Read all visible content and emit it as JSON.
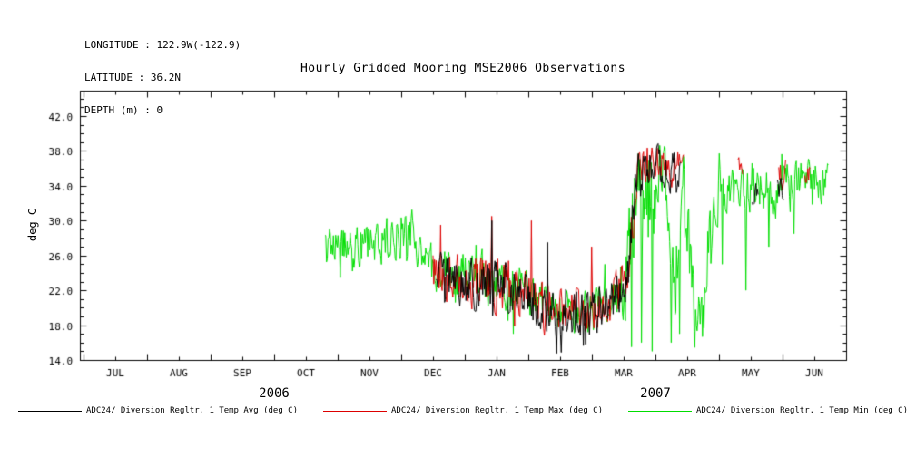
{
  "header": {
    "longitude": "LONGITUDE : 122.9W(-122.9)",
    "latitude": "LATITUDE : 36.2N",
    "depth": "DEPTH (m) : 0"
  },
  "chart_data": {
    "type": "line",
    "title": "Hourly Gridded Mooring MSE2006 Observations",
    "ylabel": "deg C",
    "y_axis": {
      "min": 14.0,
      "max": 42.0,
      "tick_step": 4.0,
      "tick_labels": [
        "14.0",
        "18.0",
        "22.0",
        "26.0",
        "30.0",
        "34.0",
        "38.0",
        "42.0"
      ]
    },
    "x_axis": {
      "months": [
        "JUL",
        "AUG",
        "SEP",
        "OCT",
        "NOV",
        "DEC",
        "JAN",
        "FEB",
        "MAR",
        "APR",
        "MAY",
        "JUN"
      ],
      "years": [
        {
          "label": "2006",
          "boundary_index": 3
        },
        {
          "label": "2007",
          "boundary_index": 9
        }
      ],
      "time_origin": "months since 2006-07-01",
      "data_range_months": [
        3.8,
        11.72
      ]
    },
    "grid": false,
    "legend_position": "bottom",
    "series": [
      {
        "name": "ADC24/ Diversion Regltr. 1 Temp Min (deg C)",
        "color": "#00dd00",
        "segments": [
          {
            "range": [
              3.8,
              11.72
            ],
            "keyframes": [
              [
                3.8,
                27,
                3
              ],
              [
                4.1,
                27.5,
                3
              ],
              [
                4.4,
                27,
                3
              ],
              [
                4.7,
                27.5,
                3
              ],
              [
                5.0,
                28,
                3.5
              ],
              [
                5.15,
                29.5,
                3.5
              ],
              [
                5.35,
                25.5,
                3
              ],
              [
                5.7,
                24,
                3
              ],
              [
                6.1,
                23.5,
                3.2
              ],
              [
                6.5,
                23,
                3.5
              ],
              [
                6.9,
                22,
                3
              ],
              [
                7.2,
                20.5,
                3
              ],
              [
                7.5,
                19.5,
                3
              ],
              [
                7.8,
                19,
                3
              ],
              [
                8.1,
                20,
                3
              ],
              [
                8.35,
                21.5,
                3
              ],
              [
                8.55,
                24,
                6
              ],
              [
                8.7,
                32,
                8
              ],
              [
                8.85,
                31,
                9
              ],
              [
                9.0,
                34,
                6
              ],
              [
                9.15,
                35,
                4
              ],
              [
                9.3,
                22,
                6
              ],
              [
                9.42,
                35,
                4
              ],
              [
                9.52,
                25,
                8
              ],
              [
                9.62,
                19,
                4
              ],
              [
                9.75,
                18,
                3.5
              ],
              [
                9.85,
                28,
                6
              ],
              [
                9.95,
                33,
                4
              ],
              [
                10.1,
                33,
                3
              ],
              [
                10.3,
                34,
                3
              ],
              [
                10.5,
                33.5,
                3
              ],
              [
                10.7,
                34,
                3.5
              ],
              [
                10.9,
                33,
                3.2
              ],
              [
                11.1,
                35,
                3
              ],
              [
                11.3,
                34.5,
                3
              ],
              [
                11.5,
                35,
                3
              ],
              [
                11.72,
                34,
                3
              ]
            ]
          }
        ],
        "spikes": [
          [
            6.76,
            17
          ],
          [
            8.62,
            15.5
          ],
          [
            8.78,
            16
          ],
          [
            8.95,
            15
          ],
          [
            9.25,
            16
          ],
          [
            9.38,
            17
          ],
          [
            10.05,
            25
          ],
          [
            10.42,
            22
          ],
          [
            10.78,
            27
          ],
          [
            11.18,
            28.5
          ]
        ]
      },
      {
        "name": "ADC24/ Diversion Regltr. 1 Temp Max (deg C)",
        "color": "#dd0000",
        "segments": [
          {
            "range": [
              5.5,
              9.45
            ],
            "keyframes": [
              [
                5.5,
                24,
                3.3
              ],
              [
                5.95,
                23.5,
                3.5
              ],
              [
                6.35,
                23,
                3.8
              ],
              [
                6.75,
                22.5,
                3.5
              ],
              [
                7.05,
                21.5,
                3
              ],
              [
                7.35,
                20,
                3
              ],
              [
                7.65,
                19.5,
                3
              ],
              [
                7.95,
                19.5,
                3
              ],
              [
                8.2,
                20.5,
                3
              ],
              [
                8.45,
                22,
                3.3
              ],
              [
                8.6,
                26,
                4
              ],
              [
                8.72,
                36.5,
                2.8
              ],
              [
                8.92,
                37,
                2.6
              ],
              [
                9.1,
                37,
                2.4
              ],
              [
                9.28,
                36,
                2.6
              ],
              [
                9.45,
                36.5,
                2.2
              ]
            ]
          },
          {
            "range": [
              10.3,
              10.38
            ],
            "keyframes": [
              [
                10.3,
                36,
                2
              ],
              [
                10.38,
                36,
                2
              ]
            ]
          },
          {
            "range": [
              10.94,
              11.06
            ],
            "keyframes": [
              [
                10.94,
                35.5,
                2.5
              ],
              [
                11.06,
                35.5,
                2.5
              ]
            ]
          },
          {
            "range": [
              11.35,
              11.44
            ],
            "keyframes": [
              [
                11.35,
                36,
                2
              ],
              [
                11.44,
                36,
                2
              ]
            ]
          }
        ],
        "spikes": [
          [
            5.62,
            29.5
          ],
          [
            6.43,
            30.5
          ],
          [
            7.05,
            30
          ],
          [
            8.0,
            27
          ]
        ]
      },
      {
        "name": "ADC24/ Diversion Regltr. 1 Temp Avg (deg C)",
        "color": "#000000",
        "segments": [
          {
            "range": [
              5.55,
              9.4
            ],
            "keyframes": [
              [
                5.55,
                23.5,
                3
              ],
              [
                5.9,
                23,
                3.3
              ],
              [
                6.3,
                22.5,
                3.5
              ],
              [
                6.7,
                22,
                3.5
              ],
              [
                7.0,
                21,
                3
              ],
              [
                7.3,
                19.5,
                3
              ],
              [
                7.6,
                19,
                3
              ],
              [
                7.9,
                19,
                3
              ],
              [
                8.15,
                20,
                3
              ],
              [
                8.4,
                21.5,
                3.2
              ],
              [
                8.58,
                25,
                4
              ],
              [
                8.7,
                36,
                3
              ],
              [
                8.9,
                36.5,
                2.8
              ],
              [
                9.1,
                36.5,
                2.5
              ],
              [
                9.25,
                35.5,
                2.8
              ],
              [
                9.4,
                36,
                2.2
              ]
            ]
          },
          {
            "range": [
              10.52,
              10.62
            ],
            "keyframes": [
              [
                10.52,
                33,
                2
              ],
              [
                10.62,
                33,
                2
              ]
            ]
          },
          {
            "range": [
              10.92,
              11.02
            ],
            "keyframes": [
              [
                10.92,
                33.5,
                2
              ],
              [
                11.02,
                33.5,
                2
              ]
            ]
          }
        ],
        "spikes": [
          [
            6.42,
            30
          ],
          [
            7.3,
            27.5
          ],
          [
            7.9,
            15.8
          ]
        ]
      }
    ]
  },
  "legend": {
    "entries": [
      {
        "label": "ADC24/ Diversion Regltr. 1 Temp Avg (deg C)",
        "color": "#000000"
      },
      {
        "label": "ADC24/ Diversion Regltr. 1 Temp Max (deg C)",
        "color": "#dd0000"
      },
      {
        "label": "ADC24/ Diversion Regltr. 1 Temp Min (deg C)",
        "color": "#00dd00"
      }
    ]
  }
}
